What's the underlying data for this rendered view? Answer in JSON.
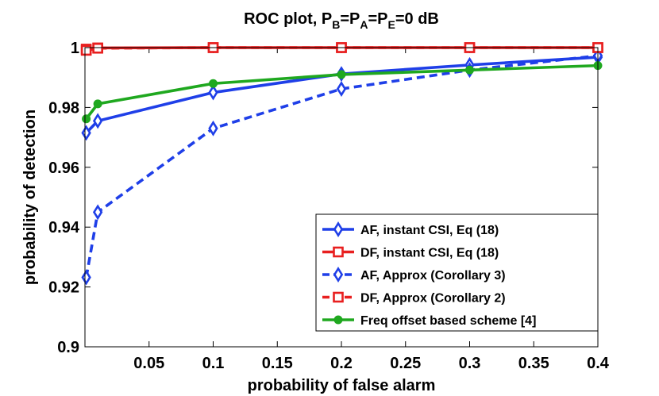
{
  "chart_data": {
    "type": "line",
    "title": {
      "prefix": "ROC plot, P",
      "parts": [
        {
          "sub": "B",
          "text": "=P"
        },
        {
          "sub": "A",
          "text": "=P"
        },
        {
          "sub": "E",
          "text": "=0 dB"
        }
      ]
    },
    "xlabel": "probability of false alarm",
    "ylabel": "probability of detection",
    "xlim": [
      0,
      0.4
    ],
    "ylim": [
      0.9,
      1.0
    ],
    "xticks": [
      0.05,
      0.1,
      0.15,
      0.2,
      0.25,
      0.3,
      0.35,
      0.4
    ],
    "xtick_labels": [
      "0.05",
      "0.1",
      "0.15",
      "0.2",
      "0.25",
      "0.3",
      "0.35",
      "0.4"
    ],
    "yticks": [
      0.9,
      0.92,
      0.94,
      0.96,
      0.98,
      1.0
    ],
    "ytick_labels": [
      "0.9",
      "0.92",
      "0.94",
      "0.96",
      "0.98",
      "1"
    ],
    "grid": false,
    "legend_position": "bottom-right",
    "series": [
      {
        "name": "AF, instant CSI, Eq (18)",
        "color": "#1f3fe8",
        "line": "solid",
        "marker": "diamond",
        "x": [
          0.001,
          0.01,
          0.1,
          0.2,
          0.3,
          0.4
        ],
        "y": [
          0.9715,
          0.9755,
          0.985,
          0.9912,
          0.9942,
          0.9968
        ]
      },
      {
        "name": "DF, instant CSI, Eq (18)",
        "color": "#e81f1f",
        "line": "solid",
        "marker": "square",
        "x": [
          0.001,
          0.01,
          0.1,
          0.2,
          0.3,
          0.4
        ],
        "y": [
          0.9995,
          0.9999,
          1.0,
          1.0,
          1.0,
          1.0
        ]
      },
      {
        "name": "AF, Approx (Corollary 3)",
        "color": "#1f3fe8",
        "line": "dashed",
        "marker": "diamond",
        "x": [
          0.001,
          0.01,
          0.1,
          0.2,
          0.3,
          0.4
        ],
        "y": [
          0.9232,
          0.945,
          0.973,
          0.9862,
          0.9925,
          0.9973
        ]
      },
      {
        "name": "DF, Approx (Corollary 2)",
        "color": "#e81f1f",
        "line": "dashed",
        "marker": "square",
        "x": [
          0.001,
          0.01,
          0.1,
          0.2,
          0.3,
          0.4
        ],
        "y": [
          0.9991,
          0.9998,
          1.0,
          1.0,
          1.0,
          1.0
        ]
      },
      {
        "name": "Freq offset based scheme [4]",
        "color": "#1fa81f",
        "line": "solid",
        "marker": "circle",
        "x": [
          0.001,
          0.01,
          0.1,
          0.2,
          0.3,
          0.4
        ],
        "y": [
          0.9762,
          0.9812,
          0.988,
          0.991,
          0.9925,
          0.994
        ]
      }
    ]
  }
}
